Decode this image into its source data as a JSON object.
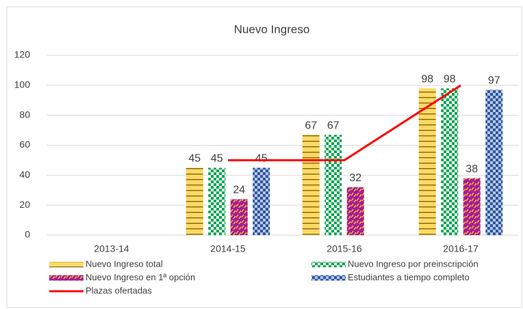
{
  "chart_data": {
    "type": "bar",
    "title": "Nuevo Ingreso",
    "categories": [
      "2013-14",
      "2014-15",
      "2015-16",
      "2016-17"
    ],
    "series": [
      {
        "name": "Nuevo Ingreso total",
        "color": "#ffd966",
        "color2": "#7f6000",
        "pattern": "horizontal-lines",
        "values": [
          null,
          45,
          67,
          98
        ]
      },
      {
        "name": "Nuevo Ingreso por preinscripción",
        "color": "#00a550",
        "color2": "#ffffff",
        "pattern": "checker",
        "values": [
          null,
          45,
          67,
          98
        ]
      },
      {
        "name": "Nuevo Ingreso en 1ª opción",
        "color": "#a51aa0",
        "color2": "#ffd700",
        "pattern": "dashes",
        "values": [
          null,
          24,
          32,
          38
        ]
      },
      {
        "name": "Estudiantes a tiempo completo",
        "color": "#2f55a0",
        "color2": "#b4c7e7",
        "pattern": "checker",
        "values": [
          null,
          45,
          null,
          97
        ]
      },
      {
        "name": "Plazas ofertadas",
        "type": "line",
        "color": "#ff0000",
        "values": [
          null,
          50,
          50,
          100
        ]
      }
    ],
    "ylim": [
      0,
      120
    ],
    "yticks": [
      0,
      20,
      40,
      60,
      80,
      100,
      120
    ],
    "grid": true
  }
}
